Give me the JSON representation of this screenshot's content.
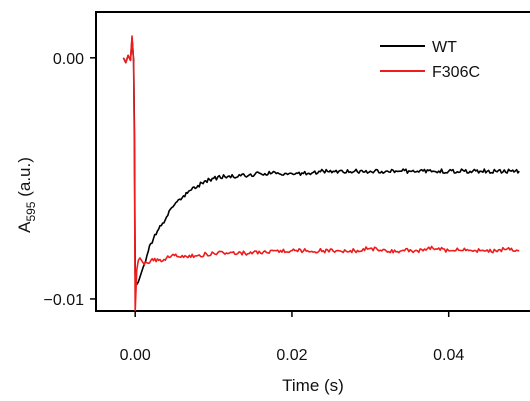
{
  "chart_data": {
    "type": "line",
    "title": "",
    "xlabel": "Time (s)",
    "ylabel_main": "A",
    "ylabel_sub": "595",
    "ylabel_suffix": " (a.u.)",
    "xlim": [
      -0.005,
      0.0505
    ],
    "ylim": [
      -0.0105,
      0.0019
    ],
    "xticks": [
      0.0,
      0.02,
      0.04
    ],
    "xtick_labels": [
      "0.00",
      "0.02",
      "0.04"
    ],
    "yticks": [
      0.0,
      -0.01
    ],
    "ytick_labels": [
      "0.00",
      "−0.01"
    ],
    "grid": false,
    "legend_position": "top-right",
    "series": [
      {
        "name": "WT",
        "color": "#000000",
        "x": [
          -0.0015,
          -0.0012,
          -0.0009,
          -0.0006,
          -0.0004,
          -0.0002,
          -0.0001,
          0.0,
          0.0002,
          0.0004,
          0.0006,
          0.0008,
          0.001,
          0.0015,
          0.002,
          0.003,
          0.004,
          0.005,
          0.006,
          0.007,
          0.008,
          0.009,
          0.01,
          0.012,
          0.014,
          0.016,
          0.018,
          0.02,
          0.022,
          0.024,
          0.026,
          0.028,
          0.03,
          0.032,
          0.034,
          0.036,
          0.038,
          0.04,
          0.042,
          0.044,
          0.046,
          0.048,
          0.049
        ],
        "y": [
          0.0,
          -0.0002,
          0.0001,
          -0.0001,
          0.0008,
          -0.0001,
          -0.003,
          -0.009,
          -0.0094,
          -0.0093,
          -0.0091,
          -0.0089,
          -0.0087,
          -0.0082,
          -0.0077,
          -0.0071,
          -0.0066,
          -0.0061,
          -0.0058,
          -0.0055,
          -0.0053,
          -0.0051,
          -0.005,
          -0.0049,
          -0.0049,
          -0.0048,
          -0.0048,
          -0.0048,
          -0.0048,
          -0.0047,
          -0.0047,
          -0.0047,
          -0.0047,
          -0.0047,
          -0.0047,
          -0.0047,
          -0.0047,
          -0.0047,
          -0.0047,
          -0.0047,
          -0.0047,
          -0.0047,
          -0.0047
        ]
      },
      {
        "name": "F306C",
        "color": "#ee1c1c",
        "x": [
          -0.0015,
          -0.0012,
          -0.0009,
          -0.0006,
          -0.0004,
          -0.0002,
          -0.0001,
          0.0,
          0.0002,
          0.0004,
          0.0006,
          0.0008,
          0.001,
          0.0015,
          0.002,
          0.003,
          0.004,
          0.005,
          0.006,
          0.008,
          0.01,
          0.012,
          0.014,
          0.016,
          0.018,
          0.02,
          0.022,
          0.024,
          0.026,
          0.028,
          0.03,
          0.032,
          0.034,
          0.036,
          0.038,
          0.04,
          0.042,
          0.044,
          0.046,
          0.048,
          0.049
        ],
        "y": [
          0.0,
          -0.0002,
          0.0001,
          -0.0001,
          0.0009,
          -0.0002,
          -0.004,
          -0.0105,
          -0.0088,
          -0.0084,
          -0.0083,
          -0.0084,
          -0.0085,
          -0.0085,
          -0.0084,
          -0.0084,
          -0.0083,
          -0.0082,
          -0.0082,
          -0.0082,
          -0.0081,
          -0.0081,
          -0.0081,
          -0.0081,
          -0.008,
          -0.008,
          -0.008,
          -0.008,
          -0.008,
          -0.008,
          -0.0079,
          -0.008,
          -0.008,
          -0.008,
          -0.0079,
          -0.008,
          -0.0079,
          -0.008,
          -0.008,
          -0.0079,
          -0.008
        ]
      }
    ]
  }
}
